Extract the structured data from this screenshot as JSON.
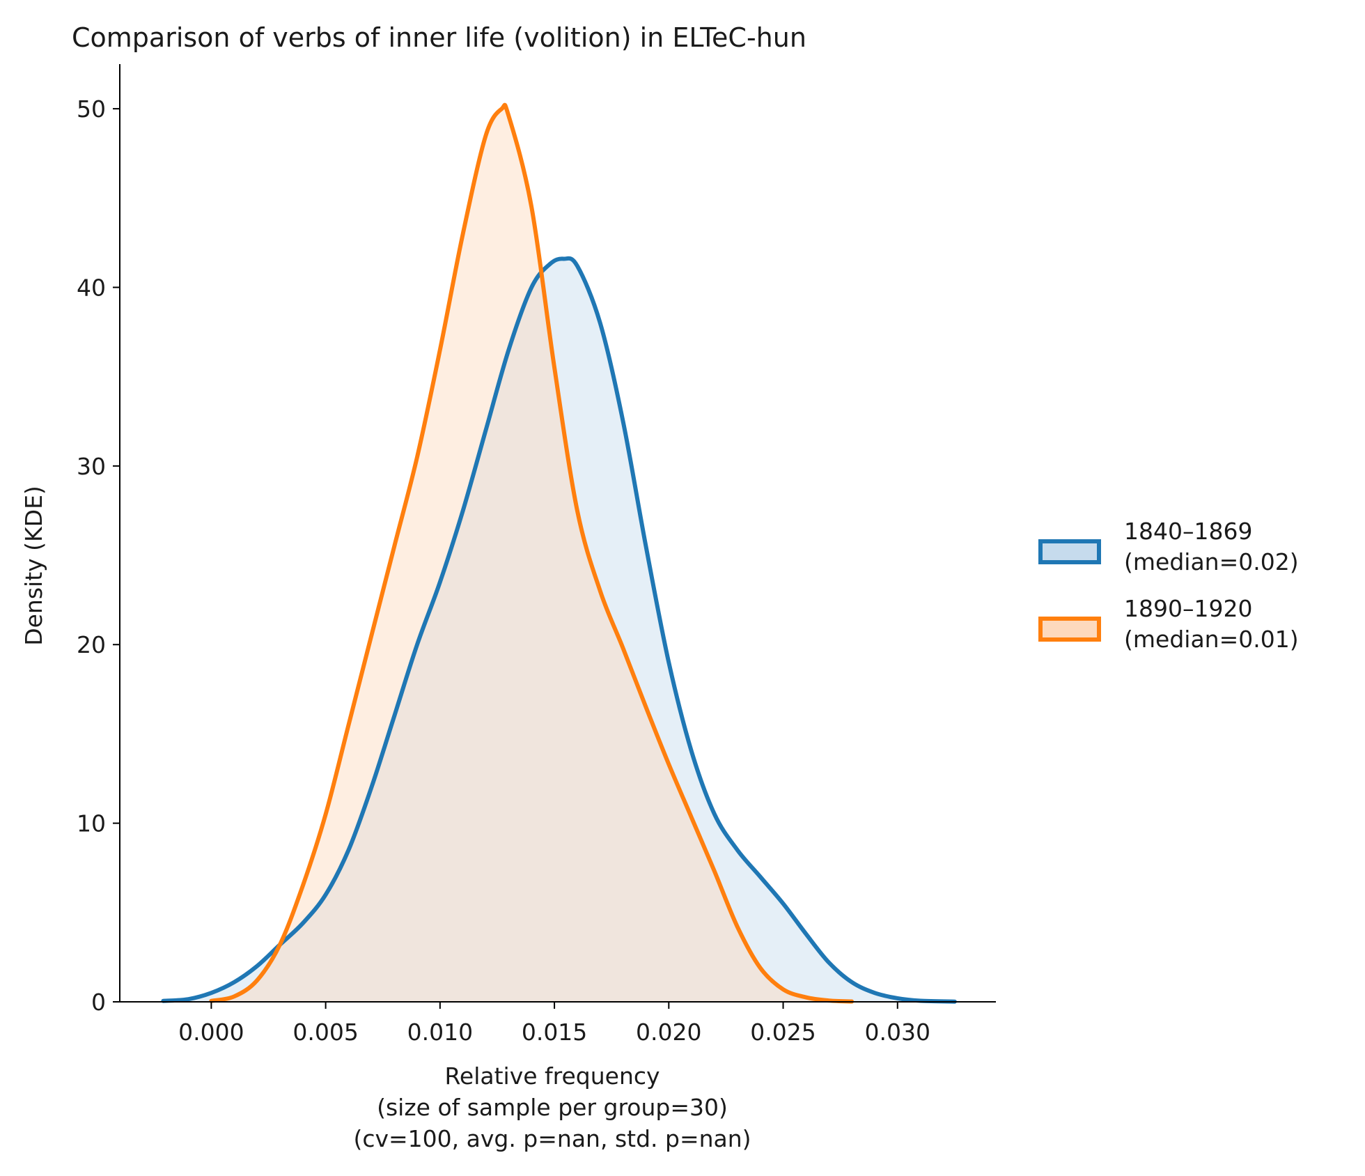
{
  "chart_data": {
    "type": "area",
    "title": "Comparison of verbs of inner life (volition) in ELTeC-hun",
    "xlabel_lines": [
      "Relative frequency",
      "(size of sample per group=30)",
      "(cv=100, avg. p=nan, std. p=nan)"
    ],
    "ylabel": "Density (KDE)",
    "xlim": [
      -0.004,
      0.0343
    ],
    "ylim": [
      0,
      52.5
    ],
    "x_ticks": [
      0.0,
      0.005,
      0.01,
      0.015,
      0.02,
      0.025,
      0.03
    ],
    "x_tick_labels": [
      "0.000",
      "0.005",
      "0.010",
      "0.015",
      "0.020",
      "0.025",
      "0.030"
    ],
    "y_ticks": [
      0,
      10,
      20,
      30,
      40,
      50
    ],
    "y_tick_labels": [
      "0",
      "10",
      "20",
      "30",
      "40",
      "50"
    ],
    "grid": false,
    "legend_placement": "right",
    "series": [
      {
        "name": "1840–1869\n(median=0.02)",
        "legend_lines": [
          "1840–1869",
          "(median=0.02)"
        ],
        "color": "#1f77b4",
        "fill": "#c6dbed",
        "x": [
          -0.0021,
          -0.001,
          0.0,
          0.001,
          0.002,
          0.003,
          0.004,
          0.005,
          0.006,
          0.007,
          0.008,
          0.009,
          0.01,
          0.011,
          0.012,
          0.013,
          0.014,
          0.0148,
          0.0154,
          0.016,
          0.017,
          0.018,
          0.019,
          0.02,
          0.021,
          0.022,
          0.023,
          0.024,
          0.025,
          0.026,
          0.027,
          0.028,
          0.029,
          0.03,
          0.031,
          0.0325
        ],
        "y": [
          0.05,
          0.15,
          0.5,
          1.1,
          2.0,
          3.2,
          4.4,
          6.0,
          8.5,
          12.0,
          16.0,
          20.0,
          23.5,
          27.5,
          32.0,
          36.5,
          40.0,
          41.3,
          41.6,
          41.2,
          38.0,
          32.5,
          25.5,
          19.0,
          14.0,
          10.5,
          8.5,
          7.0,
          5.5,
          3.8,
          2.2,
          1.1,
          0.5,
          0.2,
          0.06,
          0.01
        ]
      },
      {
        "name": "1890–1920\n(median=0.01)",
        "legend_lines": [
          "1890–1920",
          "(median=0.01)"
        ],
        "color": "#ff7f0e",
        "fill": "#fdd9bd",
        "x": [
          0.0,
          0.001,
          0.002,
          0.003,
          0.004,
          0.005,
          0.006,
          0.007,
          0.008,
          0.009,
          0.01,
          0.011,
          0.012,
          0.0127,
          0.013,
          0.014,
          0.015,
          0.016,
          0.017,
          0.018,
          0.019,
          0.02,
          0.021,
          0.022,
          0.023,
          0.024,
          0.025,
          0.026,
          0.027,
          0.028
        ],
        "y": [
          0.05,
          0.3,
          1.2,
          3.2,
          6.5,
          10.5,
          15.5,
          20.5,
          25.5,
          30.5,
          36.5,
          43.0,
          48.5,
          50.0,
          49.6,
          44.5,
          35.5,
          27.5,
          23.0,
          19.8,
          16.5,
          13.3,
          10.3,
          7.3,
          4.2,
          1.9,
          0.7,
          0.25,
          0.07,
          0.02
        ]
      }
    ]
  }
}
